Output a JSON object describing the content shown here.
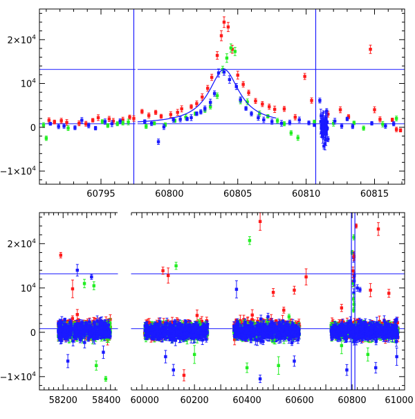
{
  "colors": {
    "red": "#ff1a1a",
    "green": "#22ee22",
    "blue": "#1a1aff",
    "model": "#1a1aff",
    "axis": "#000000"
  },
  "chart_data": [
    {
      "type": "scatter",
      "panel": "top",
      "title": "",
      "xlabel": "",
      "ylabel": "",
      "xlim": [
        60790.5,
        60817.2
      ],
      "ylim": [
        -13000,
        27000
      ],
      "xticks": [
        60795,
        60800,
        60805,
        60810,
        60815
      ],
      "xtick_labels": [
        "60795",
        "60800",
        "60805",
        "60810",
        "60815"
      ],
      "yticks": [
        -10000,
        0,
        10000,
        20000
      ],
      "ytick_labels": [
        {
          "prefix": "−1×10",
          "exp": "4"
        },
        {
          "prefix": "0",
          "exp": ""
        },
        {
          "prefix": "10",
          "exp": "4"
        },
        {
          "prefix": "2×10",
          "exp": "4"
        }
      ],
      "hlines": [
        13200,
        800
      ],
      "vlines": [
        60797.4,
        60810.7
      ],
      "axis_breaks": [
        60797.6
      ],
      "model": {
        "type": "lorentzian",
        "t0": 60804.0,
        "width": 1.35,
        "peak": 12500,
        "baseline": 700,
        "range": [
          60797.5,
          60807.8
        ]
      },
      "series": [
        {
          "name": "red",
          "color_key": "red",
          "points": [
            [
              60791.2,
              1600
            ],
            [
              60791.6,
              1200
            ],
            [
              60792.1,
              1500
            ],
            [
              60792.5,
              1100
            ],
            [
              60793.4,
              900
            ],
            [
              60793.9,
              800
            ],
            [
              60794.4,
              1600
            ],
            [
              60794.8,
              2200
            ],
            [
              60795.6,
              1900
            ],
            [
              60795.9,
              1400
            ],
            [
              60796.6,
              1700
            ],
            [
              60797.1,
              2300
            ],
            [
              60797.4,
              2000
            ],
            [
              60798.0,
              3600
            ],
            [
              60798.5,
              2700
            ],
            [
              60799.0,
              3400
            ],
            [
              60799.4,
              2500
            ],
            [
              60800.1,
              2900
            ],
            [
              60800.6,
              3400
            ],
            [
              60800.9,
              4200
            ],
            [
              60801.6,
              4700
            ],
            [
              60802.0,
              5400
            ],
            [
              60802.4,
              6900
            ],
            [
              60802.8,
              8900
            ],
            [
              60803.1,
              11400
            ],
            [
              60803.5,
              16400
            ],
            [
              60803.8,
              20900
            ],
            [
              60804.0,
              24000
            ],
            [
              60804.3,
              22900
            ],
            [
              60804.6,
              17800
            ],
            [
              60805.0,
              11900
            ],
            [
              60805.4,
              9800
            ],
            [
              60805.8,
              7900
            ],
            [
              60806.3,
              6000
            ],
            [
              60806.8,
              5300
            ],
            [
              60807.3,
              4700
            ],
            [
              60807.7,
              4100
            ],
            [
              60808.4,
              4200
            ],
            [
              60809.2,
              2300
            ],
            [
              60809.9,
              11600
            ],
            [
              60810.4,
              6100
            ],
            [
              60811.6,
              3000
            ],
            [
              60812.5,
              4000
            ],
            [
              60813.1,
              2400
            ],
            [
              60814.7,
              17800
            ],
            [
              60815.0,
              4000
            ],
            [
              60815.4,
              1800
            ],
            [
              60816.3,
              1700
            ],
            [
              60816.6,
              -500
            ],
            [
              60816.9,
              -700
            ]
          ]
        },
        {
          "name": "green",
          "color_key": "green",
          "points": [
            [
              60790.8,
              500
            ],
            [
              60791.0,
              -2500
            ],
            [
              60792.6,
              -200
            ],
            [
              60795.1,
              1300
            ],
            [
              60795.5,
              400
            ],
            [
              60796.2,
              800
            ],
            [
              60796.6,
              1000
            ],
            [
              60797.0,
              1200
            ],
            [
              60798.3,
              200
            ],
            [
              60798.9,
              900
            ],
            [
              60799.7,
              600
            ],
            [
              60800.4,
              1500
            ],
            [
              60801.2,
              2300
            ],
            [
              60801.9,
              3100
            ],
            [
              60802.6,
              3900
            ],
            [
              60803.0,
              4700
            ],
            [
              60803.5,
              7200
            ],
            [
              60803.9,
              13200
            ],
            [
              60804.2,
              15800
            ],
            [
              60804.5,
              18100
            ],
            [
              60804.8,
              17300
            ],
            [
              60805.2,
              6100
            ],
            [
              60805.7,
              5800
            ],
            [
              60806.6,
              3100
            ],
            [
              60807.2,
              2500
            ],
            [
              60807.9,
              1500
            ],
            [
              60808.4,
              800
            ],
            [
              60808.9,
              -1300
            ],
            [
              60809.4,
              -2400
            ],
            [
              60810.6,
              1200
            ],
            [
              60811.2,
              -100
            ],
            [
              60812.0,
              900
            ],
            [
              60813.5,
              1000
            ],
            [
              60814.2,
              -200
            ],
            [
              60815.6,
              700
            ],
            [
              60816.6,
              2000
            ]
          ]
        },
        {
          "name": "blue",
          "color_key": "blue",
          "points": [
            [
              60791.3,
              800
            ],
            [
              60791.9,
              200
            ],
            [
              60792.3,
              300
            ],
            [
              60793.1,
              -100
            ],
            [
              60793.6,
              1600
            ],
            [
              60794.1,
              400
            ],
            [
              60794.6,
              -200
            ],
            [
              60795.3,
              1300
            ],
            [
              60795.8,
              800
            ],
            [
              60796.4,
              1400
            ],
            [
              60798.2,
              1300
            ],
            [
              60798.7,
              900
            ],
            [
              60799.2,
              -3300
            ],
            [
              60799.6,
              100
            ],
            [
              60800.3,
              1700
            ],
            [
              60800.8,
              1800
            ],
            [
              60801.3,
              1900
            ],
            [
              60801.6,
              2200
            ],
            [
              60802.0,
              3100
            ],
            [
              60802.3,
              3500
            ],
            [
              60802.6,
              4300
            ],
            [
              60803.0,
              5700
            ],
            [
              60803.3,
              7700
            ],
            [
              60803.6,
              12400
            ],
            [
              60804.0,
              12600
            ],
            [
              60804.4,
              10900
            ],
            [
              60804.9,
              9300
            ],
            [
              60805.2,
              6300
            ],
            [
              60805.6,
              4300
            ],
            [
              60806.0,
              3100
            ],
            [
              60806.5,
              2200
            ],
            [
              60806.9,
              1700
            ],
            [
              60807.5,
              1300
            ],
            [
              60808.2,
              900
            ],
            [
              60808.8,
              1100
            ],
            [
              60809.5,
              1700
            ],
            [
              60810.2,
              1000
            ],
            [
              60810.6,
              500
            ],
            [
              60811.0,
              6100
            ],
            [
              60811.1,
              2600
            ],
            [
              60811.2,
              -1900
            ],
            [
              60811.3,
              -4300
            ],
            [
              60811.4,
              900
            ],
            [
              60811.5,
              3700
            ],
            [
              60811.6,
              -2700
            ],
            [
              60812.1,
              1400
            ],
            [
              60812.6,
              300
            ],
            [
              60813.0,
              1900
            ],
            [
              60813.4,
              200
            ],
            [
              60814.8,
              900
            ],
            [
              60815.8,
              300
            ],
            [
              60816.4,
              800
            ]
          ]
        }
      ]
    },
    {
      "type": "scatter",
      "panel": "bottom",
      "title": "",
      "xlabel": "",
      "ylabel": "",
      "segments": [
        {
          "xlim": [
            58100,
            58430
          ],
          "band": [
            58180,
            58400
          ]
        },
        {
          "xlim": [
            59960,
            61000
          ],
          "band": [
            60010,
            60250
          ]
        }
      ],
      "xlim_note": "two broken x segments; right segment 59960–61000",
      "ylim": [
        -13000,
        27000
      ],
      "xticks": [
        58200,
        58400,
        60000,
        60200,
        60400,
        60600,
        60800,
        61000
      ],
      "xtick_labels": [
        "58200",
        "58400",
        "60000",
        "60200",
        "60400",
        "60600",
        "60800",
        "61000"
      ],
      "yticks": [
        -10000,
        0,
        10000,
        20000
      ],
      "ytick_labels": [
        {
          "prefix": "−1×10",
          "exp": "4"
        },
        {
          "prefix": "0",
          "exp": ""
        },
        {
          "prefix": "10",
          "exp": "4"
        },
        {
          "prefix": "2×10",
          "exp": "4"
        }
      ],
      "hlines": [
        13200,
        800
      ],
      "vlines": [
        60797.4,
        60810.7
      ],
      "observing_seasons": [
        {
          "start": 58180,
          "end": 58400
        },
        {
          "start": 60010,
          "end": 60250
        },
        {
          "start": 60350,
          "end": 60600
        },
        {
          "start": 60720,
          "end": 60975
        }
      ],
      "outliers": {
        "red": [
          [
            58190,
            17400
          ],
          [
            58240,
            9800
          ],
          [
            58260,
            4000
          ],
          [
            60080,
            13900
          ],
          [
            60100,
            12800
          ],
          [
            60210,
            3800
          ],
          [
            60160,
            -9700
          ],
          [
            60450,
            25000
          ],
          [
            60420,
            3900
          ],
          [
            60500,
            9000
          ],
          [
            60540,
            5000
          ],
          [
            60625,
            12500
          ],
          [
            60580,
            9500
          ],
          [
            60815,
            24000
          ],
          [
            60900,
            23300
          ],
          [
            60760,
            5500
          ],
          [
            60870,
            9500
          ],
          [
            60940,
            8800
          ]
        ],
        "green": [
          [
            58290,
            11000
          ],
          [
            58330,
            10500
          ],
          [
            58340,
            -7500
          ],
          [
            58380,
            -10500
          ],
          [
            60130,
            15000
          ],
          [
            60200,
            -5000
          ],
          [
            60410,
            20700
          ],
          [
            60400,
            -8000
          ],
          [
            60520,
            -7500
          ],
          [
            60560,
            3500
          ],
          [
            60800,
            18000
          ],
          [
            60860,
            -5000
          ],
          [
            60760,
            -3000
          ]
        ],
        "blue": [
          [
            58260,
            14000
          ],
          [
            58220,
            -6500
          ],
          [
            58320,
            12500
          ],
          [
            58370,
            -4500
          ],
          [
            60090,
            -5500
          ],
          [
            60120,
            -8500
          ],
          [
            60360,
            9700
          ],
          [
            60450,
            -10500
          ],
          [
            60480,
            3500
          ],
          [
            60580,
            -6500
          ],
          [
            60820,
            10000
          ],
          [
            60830,
            9600
          ],
          [
            60890,
            -8000
          ],
          [
            60970,
            -5500
          ],
          [
            60780,
            -8500
          ]
        ]
      }
    }
  ]
}
